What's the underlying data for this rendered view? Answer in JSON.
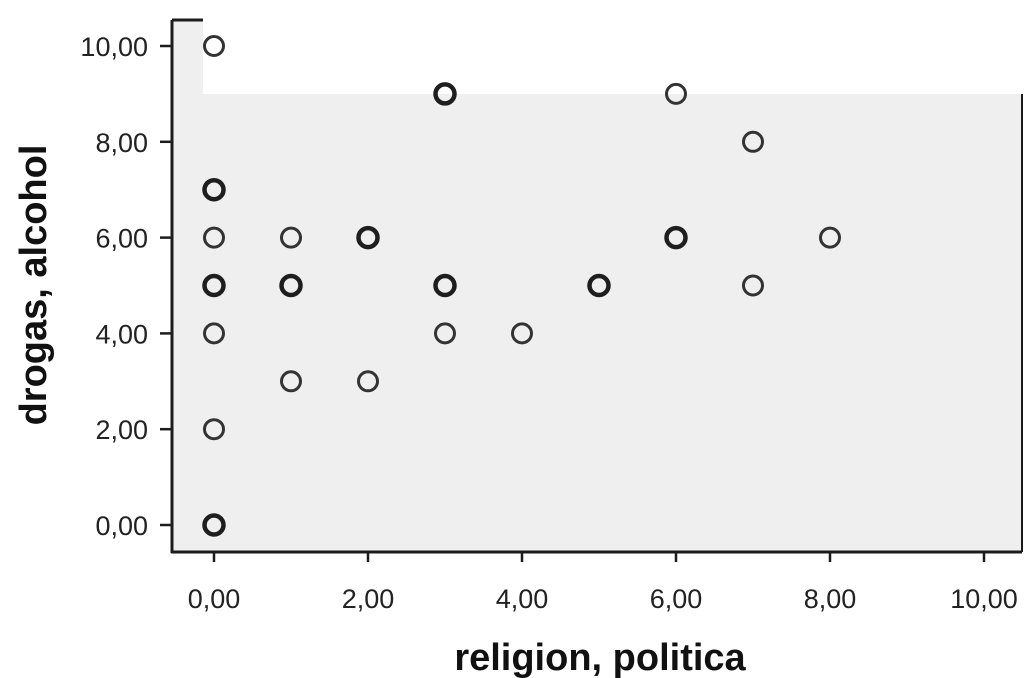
{
  "chart_data": {
    "type": "scatter",
    "title": "",
    "xlabel": "religion, politica",
    "ylabel": "drogas, alcohol",
    "xlim": [
      0,
      10
    ],
    "ylim": [
      0,
      10
    ],
    "x_ticks": [
      "0,00",
      "2,00",
      "4,00",
      "6,00",
      "8,00",
      "10,00"
    ],
    "y_ticks": [
      "0,00",
      "2,00",
      "4,00",
      "6,00",
      "8,00",
      "10,00"
    ],
    "grid": false,
    "colors": {
      "plot_background": "#efefef",
      "marker_stroke": "#333333"
    },
    "points": [
      {
        "x": 0,
        "y": 0,
        "overlap": true
      },
      {
        "x": 0,
        "y": 2
      },
      {
        "x": 0,
        "y": 4
      },
      {
        "x": 0,
        "y": 5,
        "overlap": true
      },
      {
        "x": 0,
        "y": 6
      },
      {
        "x": 0,
        "y": 7,
        "overlap": true
      },
      {
        "x": 0,
        "y": 10
      },
      {
        "x": 1,
        "y": 3
      },
      {
        "x": 1,
        "y": 5,
        "overlap": true
      },
      {
        "x": 1,
        "y": 6
      },
      {
        "x": 2,
        "y": 3
      },
      {
        "x": 2,
        "y": 6,
        "overlap": true
      },
      {
        "x": 3,
        "y": 4
      },
      {
        "x": 3,
        "y": 5,
        "overlap": true
      },
      {
        "x": 3,
        "y": 9,
        "overlap": true
      },
      {
        "x": 4,
        "y": 4
      },
      {
        "x": 5,
        "y": 5,
        "overlap": true
      },
      {
        "x": 6,
        "y": 6,
        "overlap": true
      },
      {
        "x": 6,
        "y": 9
      },
      {
        "x": 7,
        "y": 5
      },
      {
        "x": 7,
        "y": 8
      },
      {
        "x": 8,
        "y": 6
      }
    ]
  }
}
